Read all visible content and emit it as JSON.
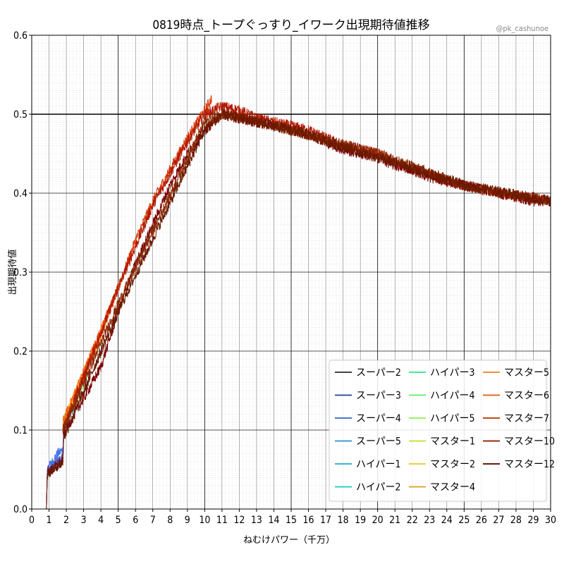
{
  "chart_data": {
    "type": "line",
    "title": "0819時点_トープぐっすり_イワーク出現期待値推移",
    "watermark": "@pk_cashunoe",
    "xlabel": "ねむけパワー（千万）",
    "ylabel": "出現期待値",
    "xlim": [
      0,
      30
    ],
    "ylim": [
      0,
      0.6
    ],
    "x_ticks": [
      "0",
      "1",
      "2",
      "3",
      "4",
      "5",
      "6",
      "7",
      "8",
      "9",
      "10",
      "11",
      "12",
      "13",
      "14",
      "15",
      "16",
      "17",
      "18",
      "19",
      "20",
      "21",
      "22",
      "23",
      "24",
      "25",
      "26",
      "27",
      "28",
      "29",
      "30"
    ],
    "y_ticks": [
      "0.0",
      "0.1",
      "0.2",
      "0.3",
      "0.4",
      "0.5",
      "0.6"
    ],
    "grid": true,
    "minor_grid": true,
    "legend_position": "bottom-right",
    "series": [
      {
        "name": "スーパー2",
        "color": "#30123b",
        "points": [
          [
            0,
            0
          ],
          [
            0.85,
            0
          ],
          [
            0.9,
            0.045
          ],
          [
            1.2,
            0.05
          ],
          [
            1.8,
            0.06
          ],
          [
            1.85,
            0.095
          ],
          [
            2.0,
            0.1
          ]
        ]
      },
      {
        "name": "スーパー3",
        "color": "#4145ab",
        "points": [
          [
            0,
            0
          ],
          [
            0.85,
            0
          ],
          [
            0.9,
            0.05
          ],
          [
            1.2,
            0.055
          ],
          [
            1.8,
            0.065
          ],
          [
            1.85,
            0.1
          ],
          [
            2.1,
            0.11
          ]
        ]
      },
      {
        "name": "スーパー4",
        "color": "#4675ed",
        "points": [
          [
            0,
            0
          ],
          [
            0.85,
            0
          ],
          [
            0.9,
            0.05
          ],
          [
            1.5,
            0.07
          ],
          [
            1.8,
            0.075
          ],
          [
            1.85,
            0.1
          ],
          [
            2.2,
            0.115
          ]
        ]
      },
      {
        "name": "スーパー5",
        "color": "#39a2fc",
        "points": [
          [
            1.8,
            0.1
          ],
          [
            2.3,
            0.125
          ]
        ]
      },
      {
        "name": "ハイパー1",
        "color": "#1bcfd4",
        "points": [
          [
            1.8,
            0.105
          ],
          [
            2.5,
            0.13
          ]
        ]
      },
      {
        "name": "ハイパー2",
        "color": "#24eca6",
        "points": [
          [
            1.8,
            0.11
          ],
          [
            2.7,
            0.145
          ]
        ]
      },
      {
        "name": "ハイパー3",
        "color": "#61fc6c",
        "points": [
          [
            1.8,
            0.11
          ],
          [
            3.0,
            0.16
          ]
        ]
      },
      {
        "name": "ハイパー4",
        "color": "#a4fc3b",
        "points": [
          [
            1.8,
            0.11
          ],
          [
            3.3,
            0.18
          ]
        ]
      },
      {
        "name": "ハイパー5",
        "color": "#d1e834",
        "points": [
          [
            1.8,
            0.11
          ],
          [
            3.7,
            0.205
          ]
        ]
      },
      {
        "name": "マスター1",
        "color": "#f3c63a",
        "points": [
          [
            1.8,
            0.11
          ],
          [
            4.0,
            0.22
          ]
        ]
      },
      {
        "name": "マスター2",
        "color": "#fe9b2d",
        "points": [
          [
            1.8,
            0.11
          ],
          [
            4.5,
            0.25
          ]
        ]
      },
      {
        "name": "マスター4",
        "color": "#f36315",
        "points": [
          [
            1.8,
            0.11
          ],
          [
            5.0,
            0.28
          ]
        ]
      },
      {
        "name": "マスター5",
        "color": "#d93806",
        "points": [
          [
            1.8,
            0.1
          ],
          [
            5.0,
            0.28
          ],
          [
            6.0,
            0.34
          ],
          [
            7.0,
            0.39
          ],
          [
            8.0,
            0.43
          ],
          [
            9.0,
            0.47
          ],
          [
            10.0,
            0.505
          ],
          [
            10.4,
            0.52
          ]
        ]
      },
      {
        "name": "マスター6",
        "color": "#b11901",
        "points": [
          [
            1.8,
            0.1
          ],
          [
            5.0,
            0.28
          ],
          [
            7.0,
            0.385
          ],
          [
            9.0,
            0.465
          ],
          [
            10.0,
            0.5
          ],
          [
            11.0,
            0.51
          ],
          [
            12.0,
            0.505
          ],
          [
            13.0,
            0.495
          ],
          [
            14.0,
            0.49
          ],
          [
            15.0,
            0.485
          ],
          [
            16.0,
            0.48
          ],
          [
            17.0,
            0.47
          ],
          [
            18.0,
            0.46
          ],
          [
            19.0,
            0.455
          ],
          [
            20.0,
            0.45
          ],
          [
            21.0,
            0.44
          ],
          [
            22.0,
            0.43
          ],
          [
            23.0,
            0.425
          ],
          [
            24.0,
            0.415
          ],
          [
            25.0,
            0.41
          ],
          [
            26.0,
            0.405
          ],
          [
            27.0,
            0.4
          ],
          [
            28.0,
            0.395
          ],
          [
            29.0,
            0.395
          ],
          [
            30.0,
            0.39
          ]
        ]
      },
      {
        "name": "マスター7",
        "color": "#7a0403",
        "points": [
          [
            0,
            0
          ],
          [
            0.85,
            0
          ],
          [
            0.9,
            0.045
          ],
          [
            1.8,
            0.06
          ],
          [
            1.85,
            0.095
          ],
          [
            3.0,
            0.14
          ],
          [
            4.0,
            0.18
          ],
          [
            5.0,
            0.25
          ],
          [
            6.0,
            0.31
          ],
          [
            7.0,
            0.36
          ],
          [
            8.0,
            0.41
          ],
          [
            9.0,
            0.45
          ],
          [
            10.0,
            0.48
          ],
          [
            11.0,
            0.5
          ],
          [
            12.0,
            0.495
          ],
          [
            13.0,
            0.49
          ],
          [
            14.0,
            0.485
          ],
          [
            15.0,
            0.48
          ],
          [
            16.0,
            0.475
          ],
          [
            17.0,
            0.465
          ],
          [
            18.0,
            0.455
          ],
          [
            19.0,
            0.45
          ],
          [
            20.0,
            0.445
          ],
          [
            21.0,
            0.435
          ],
          [
            22.0,
            0.43
          ],
          [
            23.0,
            0.42
          ],
          [
            24.0,
            0.415
          ],
          [
            25.0,
            0.41
          ],
          [
            26.0,
            0.405
          ],
          [
            27.0,
            0.4
          ],
          [
            28.0,
            0.395
          ],
          [
            29.0,
            0.39
          ],
          [
            30.0,
            0.39
          ]
        ]
      },
      {
        "name": "マスター10",
        "color": "#8b2a05",
        "points": [
          [
            1.8,
            0.1
          ],
          [
            5.0,
            0.26
          ],
          [
            10.0,
            0.49
          ],
          [
            11.0,
            0.5
          ],
          [
            15.0,
            0.48
          ],
          [
            20.0,
            0.45
          ],
          [
            25.0,
            0.41
          ],
          [
            30.0,
            0.39
          ]
        ]
      },
      {
        "name": "マスター12",
        "color": "#6b1a00",
        "points": [
          [
            0,
            0
          ],
          [
            0.85,
            0
          ],
          [
            0.9,
            0.045
          ],
          [
            1.8,
            0.06
          ],
          [
            1.85,
            0.09
          ],
          [
            5.0,
            0.25
          ],
          [
            10.0,
            0.48
          ],
          [
            11.0,
            0.5
          ],
          [
            15.0,
            0.48
          ],
          [
            20.0,
            0.445
          ],
          [
            25.0,
            0.41
          ],
          [
            30.0,
            0.39
          ]
        ]
      }
    ],
    "legend_order": [
      "スーパー2",
      "スーパー3",
      "スーパー4",
      "スーパー5",
      "ハイパー1",
      "ハイパー2",
      "ハイパー3",
      "ハイパー4",
      "ハイパー5",
      "マスター1",
      "マスター2",
      "マスター4",
      "マスター5",
      "マスター6",
      "マスター7",
      "マスター10",
      "マスター12"
    ],
    "legend_colors": [
      "#444444",
      "#3b4fa0",
      "#4a76d0",
      "#3e9fd0",
      "#3ab5d8",
      "#30cfc0",
      "#40e89a",
      "#6ef07a",
      "#9cf060",
      "#c8e040",
      "#e8d040",
      "#e0a838",
      "#f0903a",
      "#e06a28",
      "#c24a18",
      "#9a2c0a",
      "#6a1a08"
    ]
  }
}
